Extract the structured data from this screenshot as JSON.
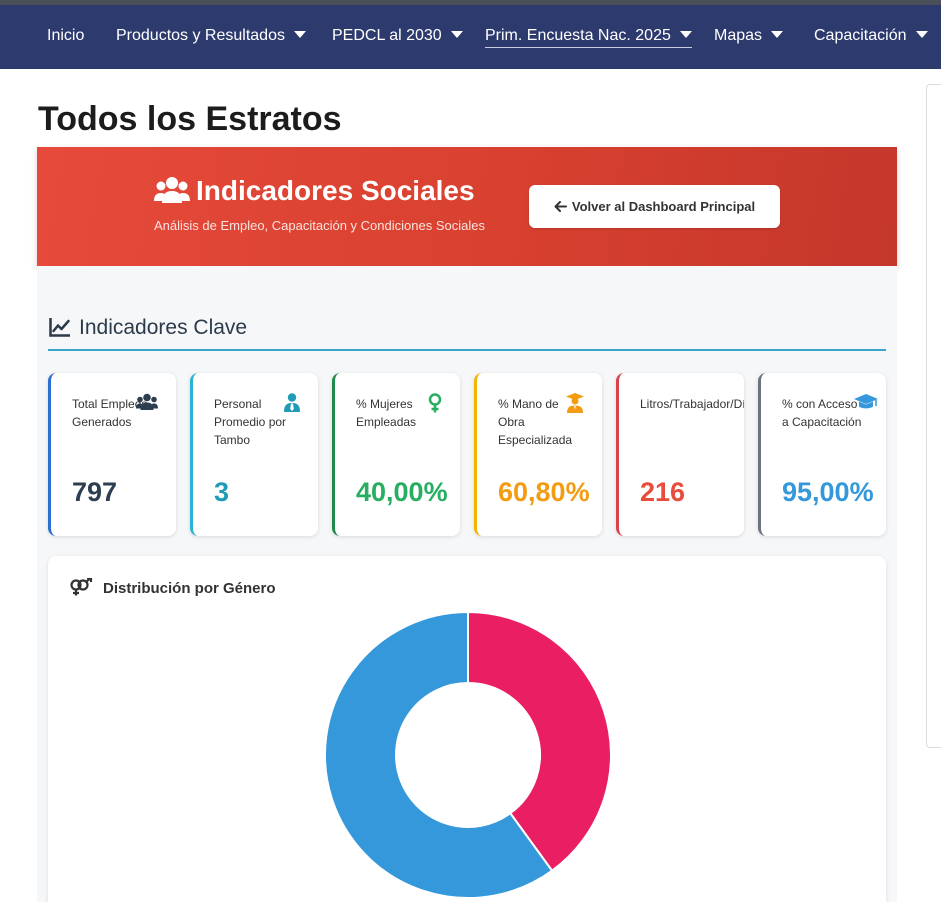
{
  "nav": {
    "items": [
      {
        "label": "Inicio",
        "dropdown": false
      },
      {
        "label": "Productos y Resultados",
        "dropdown": true
      },
      {
        "label": "PEDCL al 2030",
        "dropdown": true
      },
      {
        "label": "Prim. Encuesta Nac. 2025",
        "dropdown": true
      },
      {
        "label": "Mapas",
        "dropdown": true
      },
      {
        "label": "Capacitación",
        "dropdown": true
      }
    ]
  },
  "page": {
    "title": "Todos los Estratos"
  },
  "banner": {
    "title": "Indicadores Sociales",
    "subtitle": "Análisis de Empleo, Capacitación y Condiciones Sociales",
    "back_button": "Volver al Dashboard Principal",
    "icon": "users-icon"
  },
  "section": {
    "title": "Indicadores Clave",
    "icon": "chart-line-icon"
  },
  "cards": [
    {
      "label": "Total Empleos Generados",
      "value": "797",
      "icon": "users-icon",
      "accent": "#2a6fd1",
      "value_color": "#2c3e50"
    },
    {
      "label": "Personal Promedio por Tambo",
      "value": "3",
      "icon": "user-tie-icon",
      "accent": "#2bb3d3",
      "value_color": "#1f9bb5"
    },
    {
      "label": "% Mujeres Empleadas",
      "value": "40,00%",
      "icon": "venus-icon",
      "accent": "#1e8a4c",
      "value_color": "#27ae60"
    },
    {
      "label": "% Mano de Obra Especializada",
      "value": "60,80%",
      "icon": "graduate-icon",
      "accent": "#f1b400",
      "value_color": "#f39c12"
    },
    {
      "label": "Litros/Trabajador/Día",
      "value": "216",
      "icon": "",
      "accent": "#d9434b",
      "value_color": "#e74c3c"
    },
    {
      "label": "% con Acceso a Capacitación",
      "value": "95,00%",
      "icon": "graduation-cap-icon",
      "accent": "#6c757d",
      "value_color": "#3498db"
    }
  ],
  "chart": {
    "title": "Distribución por Género",
    "icon": "venus-mars-icon"
  },
  "chart_data": {
    "type": "pie",
    "title": "Distribución por Género",
    "categories": [
      "",
      ""
    ],
    "values": [
      40,
      60
    ],
    "colors": [
      "#e91e63",
      "#3498db"
    ],
    "donut": true
  }
}
